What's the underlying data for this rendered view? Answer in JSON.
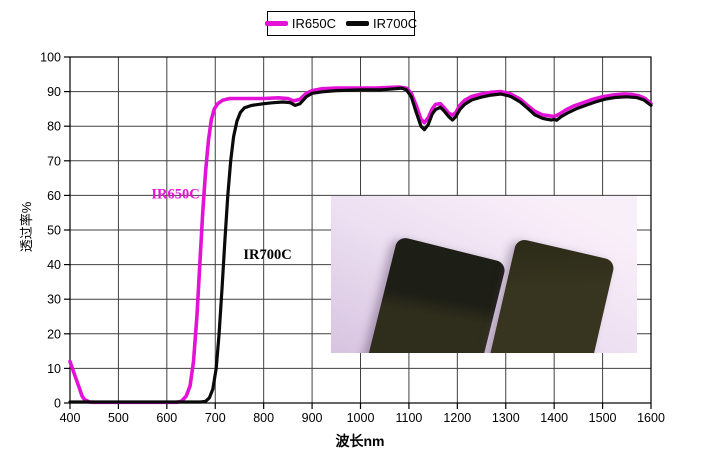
{
  "chart_data": {
    "type": "line",
    "title": "",
    "xlabel": "波长nm",
    "ylabel": "透过率%",
    "xlim": [
      400,
      1600
    ],
    "ylim": [
      0,
      100
    ],
    "x_ticks": [
      400,
      500,
      600,
      700,
      800,
      900,
      1000,
      1100,
      1200,
      1300,
      1400,
      1500,
      1600
    ],
    "y_ticks": [
      0,
      10,
      20,
      30,
      40,
      50,
      60,
      70,
      80,
      90,
      100
    ],
    "grid": true,
    "grid_color": "#404040",
    "legend_position": "top-center",
    "series": [
      {
        "name": "IR650C",
        "color": "#e312d6",
        "width": 3.6,
        "points": [
          [
            400,
            12
          ],
          [
            405,
            10
          ],
          [
            410,
            8
          ],
          [
            415,
            6
          ],
          [
            420,
            4
          ],
          [
            425,
            2
          ],
          [
            430,
            1
          ],
          [
            440,
            0.3
          ],
          [
            450,
            0.2
          ],
          [
            500,
            0.2
          ],
          [
            550,
            0.2
          ],
          [
            600,
            0.2
          ],
          [
            620,
            0.2
          ],
          [
            630,
            0.5
          ],
          [
            640,
            2
          ],
          [
            648,
            5
          ],
          [
            655,
            12
          ],
          [
            662,
            25
          ],
          [
            668,
            40
          ],
          [
            674,
            55
          ],
          [
            680,
            67
          ],
          [
            686,
            76
          ],
          [
            692,
            82
          ],
          [
            698,
            85
          ],
          [
            705,
            86.5
          ],
          [
            715,
            87.5
          ],
          [
            730,
            88
          ],
          [
            760,
            88
          ],
          [
            800,
            88
          ],
          [
            830,
            88.2
          ],
          [
            850,
            88
          ],
          [
            862,
            87.3
          ],
          [
            875,
            87.8
          ],
          [
            888,
            89.5
          ],
          [
            900,
            90.3
          ],
          [
            920,
            90.8
          ],
          [
            950,
            91
          ],
          [
            1000,
            91
          ],
          [
            1030,
            91
          ],
          [
            1060,
            91.2
          ],
          [
            1080,
            91.3
          ],
          [
            1095,
            91
          ],
          [
            1105,
            89.5
          ],
          [
            1115,
            86
          ],
          [
            1125,
            82
          ],
          [
            1132,
            81
          ],
          [
            1140,
            82.5
          ],
          [
            1148,
            85
          ],
          [
            1155,
            86.3
          ],
          [
            1165,
            86.5
          ],
          [
            1172,
            85.5
          ],
          [
            1182,
            83.8
          ],
          [
            1190,
            83.2
          ],
          [
            1197,
            84
          ],
          [
            1205,
            86
          ],
          [
            1215,
            87.5
          ],
          [
            1230,
            88.6
          ],
          [
            1250,
            89.3
          ],
          [
            1270,
            89.8
          ],
          [
            1290,
            90
          ],
          [
            1310,
            89.3
          ],
          [
            1330,
            87.8
          ],
          [
            1345,
            86
          ],
          [
            1360,
            84.3
          ],
          [
            1375,
            83.3
          ],
          [
            1390,
            83
          ],
          [
            1400,
            82.8
          ],
          [
            1412,
            83.6
          ],
          [
            1425,
            84.8
          ],
          [
            1440,
            85.8
          ],
          [
            1460,
            86.8
          ],
          [
            1480,
            87.8
          ],
          [
            1500,
            88.5
          ],
          [
            1520,
            89
          ],
          [
            1545,
            89.3
          ],
          [
            1560,
            89.2
          ],
          [
            1575,
            88.8
          ],
          [
            1588,
            88
          ],
          [
            1600,
            86.5
          ]
        ]
      },
      {
        "name": "IR700C",
        "color": "#0a0a0a",
        "width": 3.2,
        "points": [
          [
            400,
            0.3
          ],
          [
            500,
            0.3
          ],
          [
            600,
            0.3
          ],
          [
            650,
            0.3
          ],
          [
            670,
            0.3
          ],
          [
            680,
            0.5
          ],
          [
            688,
            1.5
          ],
          [
            695,
            4
          ],
          [
            702,
            10
          ],
          [
            708,
            20
          ],
          [
            714,
            33
          ],
          [
            720,
            47
          ],
          [
            726,
            60
          ],
          [
            732,
            70
          ],
          [
            738,
            77
          ],
          [
            745,
            81.5
          ],
          [
            752,
            84
          ],
          [
            760,
            85.3
          ],
          [
            775,
            86
          ],
          [
            800,
            86.5
          ],
          [
            820,
            86.8
          ],
          [
            840,
            87
          ],
          [
            855,
            86.8
          ],
          [
            865,
            86
          ],
          [
            875,
            86.5
          ],
          [
            888,
            88.5
          ],
          [
            900,
            89.5
          ],
          [
            925,
            90
          ],
          [
            950,
            90.3
          ],
          [
            1000,
            90.5
          ],
          [
            1040,
            90.5
          ],
          [
            1070,
            90.8
          ],
          [
            1085,
            91
          ],
          [
            1095,
            90.5
          ],
          [
            1105,
            88.5
          ],
          [
            1115,
            84
          ],
          [
            1125,
            80
          ],
          [
            1132,
            79
          ],
          [
            1140,
            80.5
          ],
          [
            1148,
            83.5
          ],
          [
            1155,
            84.8
          ],
          [
            1165,
            85.5
          ],
          [
            1172,
            84.5
          ],
          [
            1182,
            82.8
          ],
          [
            1190,
            81.8
          ],
          [
            1197,
            82.8
          ],
          [
            1205,
            84.8
          ],
          [
            1215,
            86.3
          ],
          [
            1230,
            87.6
          ],
          [
            1250,
            88.4
          ],
          [
            1270,
            89
          ],
          [
            1290,
            89.3
          ],
          [
            1310,
            88.6
          ],
          [
            1330,
            87
          ],
          [
            1345,
            85.2
          ],
          [
            1360,
            83.3
          ],
          [
            1375,
            82.3
          ],
          [
            1385,
            82
          ],
          [
            1395,
            81.8
          ],
          [
            1400,
            82
          ],
          [
            1405,
            81.7
          ],
          [
            1415,
            82.8
          ],
          [
            1430,
            84
          ],
          [
            1445,
            85
          ],
          [
            1465,
            86
          ],
          [
            1485,
            87
          ],
          [
            1505,
            87.8
          ],
          [
            1525,
            88.3
          ],
          [
            1550,
            88.5
          ],
          [
            1570,
            88.3
          ],
          [
            1585,
            87.6
          ],
          [
            1600,
            86
          ]
        ]
      }
    ],
    "annotations": [
      {
        "text": "IR650C",
        "wl": 568,
        "t": 60.5,
        "color": "#e312d6"
      },
      {
        "text": "IR700C",
        "wl": 758,
        "t": 43,
        "color": "#000000"
      }
    ]
  },
  "legend": {
    "items": [
      {
        "label": "IR650C",
        "color": "#e312d6"
      },
      {
        "label": "IR700C",
        "color": "#0a0a0a"
      }
    ]
  },
  "inset_photo": {
    "bg_top_right": "#f9eff9",
    "bg_mid": "#ecdff1",
    "bg_bottom_left": "#d7c4e0",
    "left_plate_top_color": "#1d1e15",
    "left_plate_bottom_color": "#2f2e1d",
    "right_plate_color": "#37351f",
    "right_plate_edge_color": "#2b2a18"
  }
}
